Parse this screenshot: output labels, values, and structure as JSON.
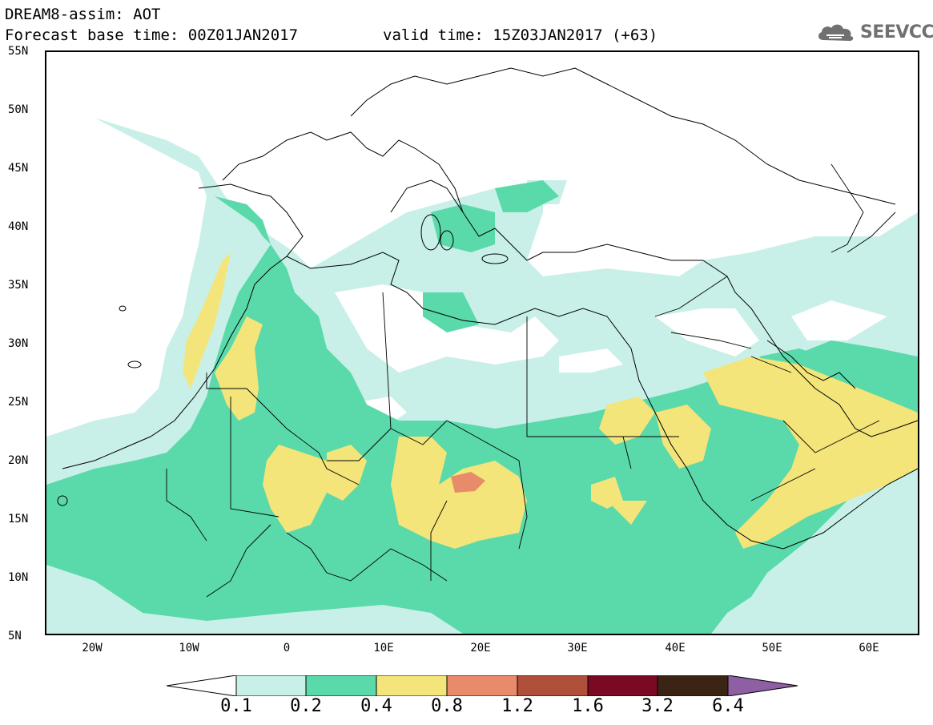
{
  "header": {
    "line1": "DREAM8-assim: AOT",
    "line2": "Forecast base time: 00Z01JAN2017",
    "line3": "valid time: 15Z03JAN2017 (+63)"
  },
  "logo": {
    "text": "SEEVCCC",
    "icon": "cloud-icon"
  },
  "map": {
    "variable": "AOT",
    "lat_range": [
      5,
      55
    ],
    "lon_range": [
      -25,
      65
    ],
    "lat_labels": [
      "55N",
      "50N",
      "45N",
      "40N",
      "35N",
      "30N",
      "25N",
      "20N",
      "15N",
      "10N",
      "5N"
    ],
    "lon_labels": [
      "20W",
      "10W",
      "0",
      "10E",
      "20E",
      "30E",
      "40E",
      "50E",
      "60E"
    ]
  },
  "legend": {
    "ticks": [
      "0.1",
      "0.2",
      "0.4",
      "0.8",
      "1.2",
      "1.6",
      "3.2",
      "6.4"
    ],
    "colors": [
      "#ffffff",
      "#c8f0e8",
      "#5ad9aa",
      "#f3e57a",
      "#e88b6a",
      "#b0503a",
      "#7a0a24",
      "#3c2414",
      "#8e5fa3"
    ]
  },
  "colors": {
    "level_0_1": "#c8f0e8",
    "level_0_2": "#5ad9aa",
    "level_0_4": "#f3e57a",
    "level_0_8": "#e88b6a"
  }
}
